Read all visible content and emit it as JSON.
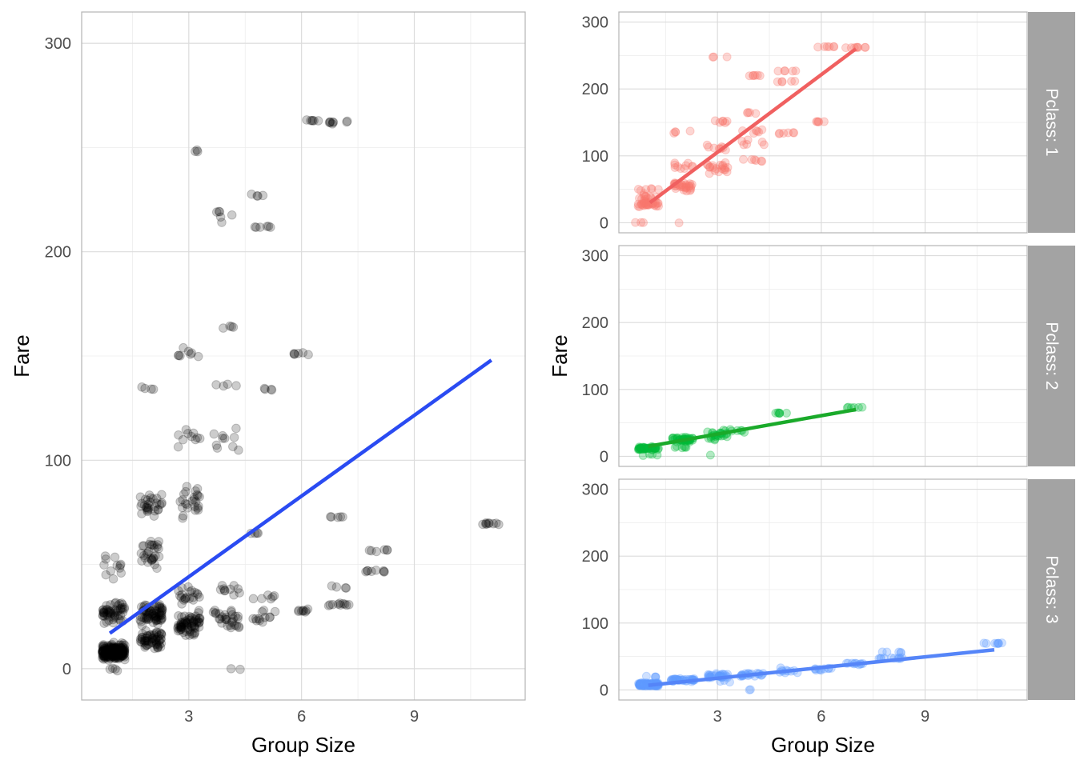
{
  "chart_data": [
    {
      "type": "scatter",
      "panel": "left",
      "xlabel": "Group Size",
      "ylabel": "Fare",
      "xlim": [
        0.15,
        11.95
      ],
      "ylim": [
        -15,
        315
      ],
      "xticks": [
        3,
        6,
        9
      ],
      "yticks": [
        0,
        100,
        200,
        300
      ],
      "grid": true,
      "point_color": "#000000",
      "point_opacity": 0.2,
      "trend_color": "#2A4BF2",
      "clusters": [
        {
          "x": 1,
          "y": 8,
          "n": 220,
          "jx": 0.3,
          "jy": 3
        },
        {
          "x": 1,
          "y": 27,
          "n": 55,
          "jx": 0.3,
          "jy": 4
        },
        {
          "x": 1,
          "y": 48,
          "n": 12,
          "jx": 0.3,
          "jy": 6
        },
        {
          "x": 1,
          "y": 0,
          "n": 4,
          "jx": 0.3,
          "jy": 1
        },
        {
          "x": 2,
          "y": 14,
          "n": 60,
          "jx": 0.3,
          "jy": 3
        },
        {
          "x": 2,
          "y": 26,
          "n": 70,
          "jx": 0.3,
          "jy": 4
        },
        {
          "x": 2,
          "y": 55,
          "n": 30,
          "jx": 0.3,
          "jy": 6
        },
        {
          "x": 2,
          "y": 80,
          "n": 30,
          "jx": 0.3,
          "jy": 6
        },
        {
          "x": 2,
          "y": 136,
          "n": 4,
          "jx": 0.3,
          "jy": 2
        },
        {
          "x": 3,
          "y": 21,
          "n": 70,
          "jx": 0.3,
          "jy": 5
        },
        {
          "x": 3,
          "y": 35,
          "n": 20,
          "jx": 0.3,
          "jy": 4
        },
        {
          "x": 3,
          "y": 80,
          "n": 25,
          "jx": 0.3,
          "jy": 7
        },
        {
          "x": 3,
          "y": 110,
          "n": 10,
          "jx": 0.3,
          "jy": 4
        },
        {
          "x": 3,
          "y": 152,
          "n": 8,
          "jx": 0.3,
          "jy": 3
        },
        {
          "x": 3.2,
          "y": 248,
          "n": 3,
          "jx": 0.05,
          "jy": 0.5
        },
        {
          "x": 4,
          "y": 24,
          "n": 30,
          "jx": 0.35,
          "jy": 4
        },
        {
          "x": 4,
          "y": 38,
          "n": 10,
          "jx": 0.35,
          "jy": 3
        },
        {
          "x": 4,
          "y": 112,
          "n": 10,
          "jx": 0.35,
          "jy": 8
        },
        {
          "x": 4,
          "y": 136,
          "n": 4,
          "jx": 0.35,
          "jy": 1
        },
        {
          "x": 4,
          "y": 164,
          "n": 4,
          "jx": 0.2,
          "jy": 0.5
        },
        {
          "x": 4,
          "y": 220,
          "n": 6,
          "jx": 0.3,
          "jy": 6
        },
        {
          "x": 4.2,
          "y": 0,
          "n": 2,
          "jx": 0.2,
          "jy": 0.5
        },
        {
          "x": 5,
          "y": 24,
          "n": 12,
          "jx": 0.3,
          "jy": 3
        },
        {
          "x": 5,
          "y": 34,
          "n": 6,
          "jx": 0.3,
          "jy": 1
        },
        {
          "x": 4.8,
          "y": 65,
          "n": 4,
          "jx": 0.15,
          "jy": 0.5
        },
        {
          "x": 5.1,
          "y": 134,
          "n": 4,
          "jx": 0.15,
          "jy": 0.5
        },
        {
          "x": 5,
          "y": 212,
          "n": 6,
          "jx": 0.35,
          "jy": 0.5
        },
        {
          "x": 5,
          "y": 227,
          "n": 4,
          "jx": 0.35,
          "jy": 0.5
        },
        {
          "x": 6,
          "y": 28,
          "n": 8,
          "jx": 0.25,
          "jy": 1
        },
        {
          "x": 6,
          "y": 151,
          "n": 6,
          "jx": 0.25,
          "jy": 0.5
        },
        {
          "x": 6.2,
          "y": 263,
          "n": 6,
          "jx": 0.25,
          "jy": 0.5
        },
        {
          "x": 7,
          "y": 31,
          "n": 10,
          "jx": 0.3,
          "jy": 0.5
        },
        {
          "x": 6.9,
          "y": 73,
          "n": 5,
          "jx": 0.2,
          "jy": 0.5
        },
        {
          "x": 7,
          "y": 39,
          "n": 4,
          "jx": 0.2,
          "jy": 0.5
        },
        {
          "x": 7,
          "y": 262,
          "n": 8,
          "jx": 0.3,
          "jy": 0.5
        },
        {
          "x": 8,
          "y": 46.9,
          "n": 8,
          "jx": 0.35,
          "jy": 0.5
        },
        {
          "x": 8,
          "y": 56.5,
          "n": 6,
          "jx": 0.3,
          "jy": 0.5
        },
        {
          "x": 11,
          "y": 69.55,
          "n": 9,
          "jx": 0.3,
          "jy": 0.3
        }
      ],
      "trend": {
        "x": [
          0.9,
          11.05
        ],
        "y": [
          17,
          148
        ]
      }
    },
    {
      "type": "scatter",
      "panel": "facet",
      "strip_label": "Pclass: 1",
      "xlabel": "Group Size",
      "ylabel": "Fare",
      "xlim": [
        0.15,
        11.95
      ],
      "ylim": [
        -15,
        315
      ],
      "xticks": [
        3,
        6,
        9
      ],
      "yticks": [
        0,
        100,
        200,
        300
      ],
      "point_color": "#F8766D",
      "point_opacity": 0.3,
      "trend_color": "#F06060",
      "clusters": [
        {
          "x": 1,
          "y": 28,
          "n": 30,
          "jx": 0.3,
          "jy": 3
        },
        {
          "x": 1,
          "y": 38,
          "n": 12,
          "jx": 0.3,
          "jy": 5
        },
        {
          "x": 1,
          "y": 50,
          "n": 6,
          "jx": 0.3,
          "jy": 2
        },
        {
          "x": 0.8,
          "y": 0,
          "n": 3,
          "jx": 0.25,
          "jy": 1
        },
        {
          "x": 2,
          "y": 55,
          "n": 30,
          "jx": 0.3,
          "jy": 6
        },
        {
          "x": 2,
          "y": 85,
          "n": 10,
          "jx": 0.3,
          "jy": 5
        },
        {
          "x": 2,
          "y": 136,
          "n": 4,
          "jx": 0.3,
          "jy": 2
        },
        {
          "x": 1.8,
          "y": 0,
          "n": 1,
          "jx": 0.1,
          "jy": 0.5
        },
        {
          "x": 3,
          "y": 82,
          "n": 20,
          "jx": 0.3,
          "jy": 6
        },
        {
          "x": 3,
          "y": 112,
          "n": 8,
          "jx": 0.3,
          "jy": 4
        },
        {
          "x": 3,
          "y": 152,
          "n": 6,
          "jx": 0.3,
          "jy": 3
        },
        {
          "x": 2.9,
          "y": 248,
          "n": 2,
          "jx": 0.05,
          "jy": 0.5
        },
        {
          "x": 3.3,
          "y": 248,
          "n": 1,
          "jx": 0.05,
          "jy": 0.5
        },
        {
          "x": 4,
          "y": 94,
          "n": 6,
          "jx": 0.3,
          "jy": 2
        },
        {
          "x": 4,
          "y": 120,
          "n": 6,
          "jx": 0.35,
          "jy": 6
        },
        {
          "x": 4,
          "y": 137,
          "n": 6,
          "jx": 0.3,
          "jy": 3
        },
        {
          "x": 4,
          "y": 164,
          "n": 4,
          "jx": 0.2,
          "jy": 1
        },
        {
          "x": 4,
          "y": 220,
          "n": 6,
          "jx": 0.25,
          "jy": 4
        },
        {
          "x": 5,
          "y": 134,
          "n": 6,
          "jx": 0.3,
          "jy": 1
        },
        {
          "x": 5,
          "y": 211,
          "n": 5,
          "jx": 0.4,
          "jy": 0.5
        },
        {
          "x": 5,
          "y": 227,
          "n": 5,
          "jx": 0.35,
          "jy": 0.5
        },
        {
          "x": 6,
          "y": 151,
          "n": 5,
          "jx": 0.2,
          "jy": 0.5
        },
        {
          "x": 6.2,
          "y": 263,
          "n": 6,
          "jx": 0.3,
          "jy": 0.5
        },
        {
          "x": 7,
          "y": 262,
          "n": 8,
          "jx": 0.3,
          "jy": 0.5
        }
      ],
      "trend": {
        "x": [
          1.05,
          7.0
        ],
        "y": [
          30,
          260
        ]
      }
    },
    {
      "type": "scatter",
      "panel": "facet",
      "strip_label": "Pclass: 2",
      "xlabel": "Group Size",
      "ylabel": "Fare",
      "xlim": [
        0.15,
        11.95
      ],
      "ylim": [
        -15,
        315
      ],
      "xticks": [
        3,
        6,
        9
      ],
      "yticks": [
        0,
        100,
        200,
        300
      ],
      "point_color": "#00BA38",
      "point_opacity": 0.3,
      "trend_color": "#1AAA2A",
      "clusters": [
        {
          "x": 1,
          "y": 12,
          "n": 45,
          "jx": 0.3,
          "jy": 2
        },
        {
          "x": 1,
          "y": 2,
          "n": 4,
          "jx": 0.3,
          "jy": 2
        },
        {
          "x": 2,
          "y": 25,
          "n": 40,
          "jx": 0.3,
          "jy": 3
        },
        {
          "x": 2,
          "y": 14,
          "n": 6,
          "jx": 0.3,
          "jy": 2
        },
        {
          "x": 3,
          "y": 32,
          "n": 25,
          "jx": 0.35,
          "jy": 6
        },
        {
          "x": 2.8,
          "y": 2,
          "n": 1,
          "jx": 0.1,
          "jy": 0.5
        },
        {
          "x": 3.6,
          "y": 38,
          "n": 6,
          "jx": 0.25,
          "jy": 3
        },
        {
          "x": 4.8,
          "y": 65,
          "n": 6,
          "jx": 0.2,
          "jy": 1
        },
        {
          "x": 7,
          "y": 73,
          "n": 6,
          "jx": 0.25,
          "jy": 0.5
        }
      ],
      "trend": {
        "x": [
          1.0,
          7.0
        ],
        "y": [
          15,
          70
        ]
      }
    },
    {
      "type": "scatter",
      "panel": "facet",
      "strip_label": "Pclass: 3",
      "xlabel": "Group Size",
      "ylabel": "Fare",
      "xlim": [
        0.15,
        11.95
      ],
      "ylim": [
        -15,
        315
      ],
      "xticks": [
        3,
        6,
        9
      ],
      "yticks": [
        0,
        100,
        200,
        300
      ],
      "point_color": "#619CFF",
      "point_opacity": 0.3,
      "trend_color": "#5585F8",
      "clusters": [
        {
          "x": 1,
          "y": 8,
          "n": 120,
          "jx": 0.3,
          "jy": 2
        },
        {
          "x": 1,
          "y": 20,
          "n": 4,
          "jx": 0.3,
          "jy": 2
        },
        {
          "x": 2,
          "y": 15,
          "n": 35,
          "jx": 0.35,
          "jy": 2
        },
        {
          "x": 3,
          "y": 21,
          "n": 30,
          "jx": 0.3,
          "jy": 3
        },
        {
          "x": 3.2,
          "y": 12,
          "n": 3,
          "jx": 0.2,
          "jy": 2
        },
        {
          "x": 4,
          "y": 23,
          "n": 20,
          "jx": 0.35,
          "jy": 3
        },
        {
          "x": 4,
          "y": 1,
          "n": 2,
          "jx": 0.2,
          "jy": 1
        },
        {
          "x": 5,
          "y": 29,
          "n": 10,
          "jx": 0.35,
          "jy": 3
        },
        {
          "x": 6,
          "y": 31,
          "n": 10,
          "jx": 0.3,
          "jy": 2
        },
        {
          "x": 7,
          "y": 39,
          "n": 10,
          "jx": 0.3,
          "jy": 2
        },
        {
          "x": 8,
          "y": 47,
          "n": 10,
          "jx": 0.35,
          "jy": 1
        },
        {
          "x": 8,
          "y": 56.5,
          "n": 5,
          "jx": 0.3,
          "jy": 1
        },
        {
          "x": 11,
          "y": 69.55,
          "n": 8,
          "jx": 0.3,
          "jy": 0.5
        }
      ],
      "trend": {
        "x": [
          1.0,
          11.0
        ],
        "y": [
          7,
          60
        ]
      }
    }
  ]
}
